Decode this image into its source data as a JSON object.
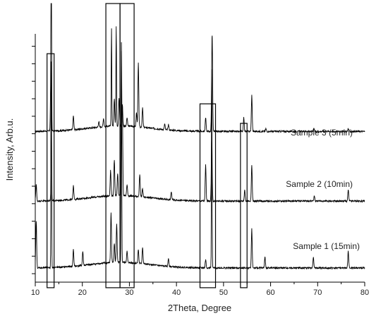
{
  "chart_data": {
    "type": "line",
    "title": "",
    "xlabel": "2Theta, Degree",
    "ylabel": "Intensity, Arb.u.",
    "xlim": [
      10,
      80
    ],
    "ylim": [
      0,
      1
    ],
    "x_ticks": [
      10,
      20,
      30,
      40,
      50,
      60,
      70,
      80
    ],
    "y_tick_labels_shown": false,
    "grid": false,
    "legend": "none",
    "line_color": "#000000",
    "series": [
      {
        "name": "Sample 3 (5min)",
        "baseline": 0.541,
        "peaks": [
          [
            13.3,
            0.14
          ],
          [
            13.4,
            0.7
          ],
          [
            18.1,
            0.05
          ],
          [
            23.5,
            0.02
          ],
          [
            24.5,
            0.03
          ],
          [
            26.2,
            0.35
          ],
          [
            26.8,
            0.1
          ],
          [
            27.2,
            0.36
          ],
          [
            27.8,
            0.1
          ],
          [
            28.5,
            0.08
          ],
          [
            29.5,
            0.03
          ],
          [
            31.5,
            0.05
          ],
          [
            31.9,
            0.23
          ],
          [
            32.8,
            0.07
          ],
          [
            37.5,
            0.02
          ],
          [
            38.3,
            0.02
          ],
          [
            46.2,
            0.05
          ],
          [
            47.5,
            0.1
          ],
          [
            47.6,
            0.29
          ],
          [
            54.3,
            0.05
          ],
          [
            56.0,
            0.13
          ],
          [
            59.0,
            0.01
          ],
          [
            69.2,
            0.01
          ],
          [
            76.5,
            0.01
          ]
        ]
      },
      {
        "name": "Sample 2 (10min)",
        "baseline": 0.291,
        "peaks": [
          [
            10.2,
            0.06
          ],
          [
            13.4,
            0.38
          ],
          [
            18.1,
            0.05
          ],
          [
            26.0,
            0.09
          ],
          [
            26.8,
            0.13
          ],
          [
            27.5,
            0.08
          ],
          [
            28.3,
            0.52
          ],
          [
            28.5,
            0.3
          ],
          [
            29.5,
            0.04
          ],
          [
            32.2,
            0.08
          ],
          [
            32.8,
            0.03
          ],
          [
            38.9,
            0.03
          ],
          [
            46.2,
            0.13
          ],
          [
            47.5,
            0.24
          ],
          [
            54.5,
            0.04
          ],
          [
            56.0,
            0.13
          ],
          [
            69.3,
            0.02
          ],
          [
            76.5,
            0.04
          ]
        ]
      },
      {
        "name": "Sample 1 (15min)",
        "baseline": 0.051,
        "peaks": [
          [
            10.2,
            0.17
          ],
          [
            13.4,
            0.74
          ],
          [
            18.1,
            0.06
          ],
          [
            20.1,
            0.05
          ],
          [
            26.1,
            0.18
          ],
          [
            26.8,
            0.07
          ],
          [
            27.3,
            0.14
          ],
          [
            28.3,
            0.76
          ],
          [
            29.5,
            0.04
          ],
          [
            31.9,
            0.05
          ],
          [
            32.8,
            0.06
          ],
          [
            38.3,
            0.03
          ],
          [
            46.2,
            0.03
          ],
          [
            47.5,
            0.71
          ],
          [
            56.0,
            0.14
          ],
          [
            58.8,
            0.04
          ],
          [
            69.1,
            0.04
          ],
          [
            76.5,
            0.06
          ]
        ]
      }
    ],
    "highlight_boxes": [
      {
        "x0": 12.5,
        "x1": 14.0,
        "y0": -0.02,
        "y1": 0.82
      },
      {
        "x0": 25.0,
        "x1": 28.0,
        "y0": -0.02,
        "y1": 1.0
      },
      {
        "x0": 28.0,
        "x1": 31.0,
        "y0": -0.02,
        "y1": 1.0
      },
      {
        "x0": 45.0,
        "x1": 48.3,
        "y0": -0.02,
        "y1": 0.64
      },
      {
        "x0": 53.6,
        "x1": 55.0,
        "y0": -0.02,
        "y1": 0.57
      }
    ]
  }
}
